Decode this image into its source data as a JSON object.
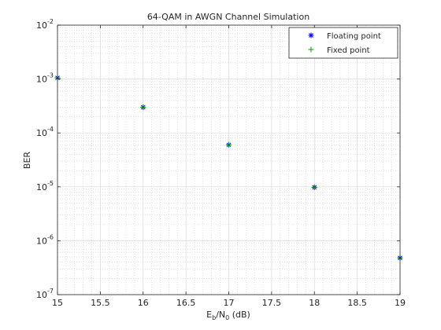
{
  "chart_data": {
    "type": "scatter",
    "title": "64-QAM in AWGN Channel Simulation",
    "xlabel": {
      "main": "E",
      "sub1": "b",
      "mid": "/N",
      "sub2": "0",
      "suffix": " (dB)"
    },
    "ylabel": "BER",
    "xlim": [
      15,
      19
    ],
    "ylim": [
      1e-07,
      0.01
    ],
    "yscale": "log",
    "grid": true,
    "minor_grid": true,
    "legend_position": "top-right",
    "x_ticks": [
      {
        "value": 15,
        "label": "15"
      },
      {
        "value": 15.5,
        "label": "15.5"
      },
      {
        "value": 16,
        "label": "16"
      },
      {
        "value": 16.5,
        "label": "16.5"
      },
      {
        "value": 17,
        "label": "17"
      },
      {
        "value": 17.5,
        "label": "17.5"
      },
      {
        "value": 18,
        "label": "18"
      },
      {
        "value": 18.5,
        "label": "18.5"
      },
      {
        "value": 19,
        "label": "19"
      }
    ],
    "y_ticks": [
      {
        "exp": -7,
        "base": "10",
        "sup": "-7"
      },
      {
        "exp": -6,
        "base": "10",
        "sup": "-6"
      },
      {
        "exp": -5,
        "base": "10",
        "sup": "-5"
      },
      {
        "exp": -4,
        "base": "10",
        "sup": "-4"
      },
      {
        "exp": -3,
        "base": "10",
        "sup": "-3"
      },
      {
        "exp": -2,
        "base": "10",
        "sup": "-2"
      }
    ],
    "series": [
      {
        "name": "Floating point",
        "marker": "asterisk",
        "color": "#0000ff",
        "x": [
          15,
          16,
          17,
          18,
          19
        ],
        "y": [
          0.00105,
          0.0003,
          6e-05,
          9.8e-06,
          4.8e-07
        ]
      },
      {
        "name": "Fixed point",
        "marker": "plus",
        "color": "#00a000",
        "x": [
          15,
          16,
          17,
          18,
          19
        ],
        "y": [
          0.00105,
          0.0003,
          6e-05,
          9.8e-06,
          4.8e-07
        ]
      }
    ]
  }
}
